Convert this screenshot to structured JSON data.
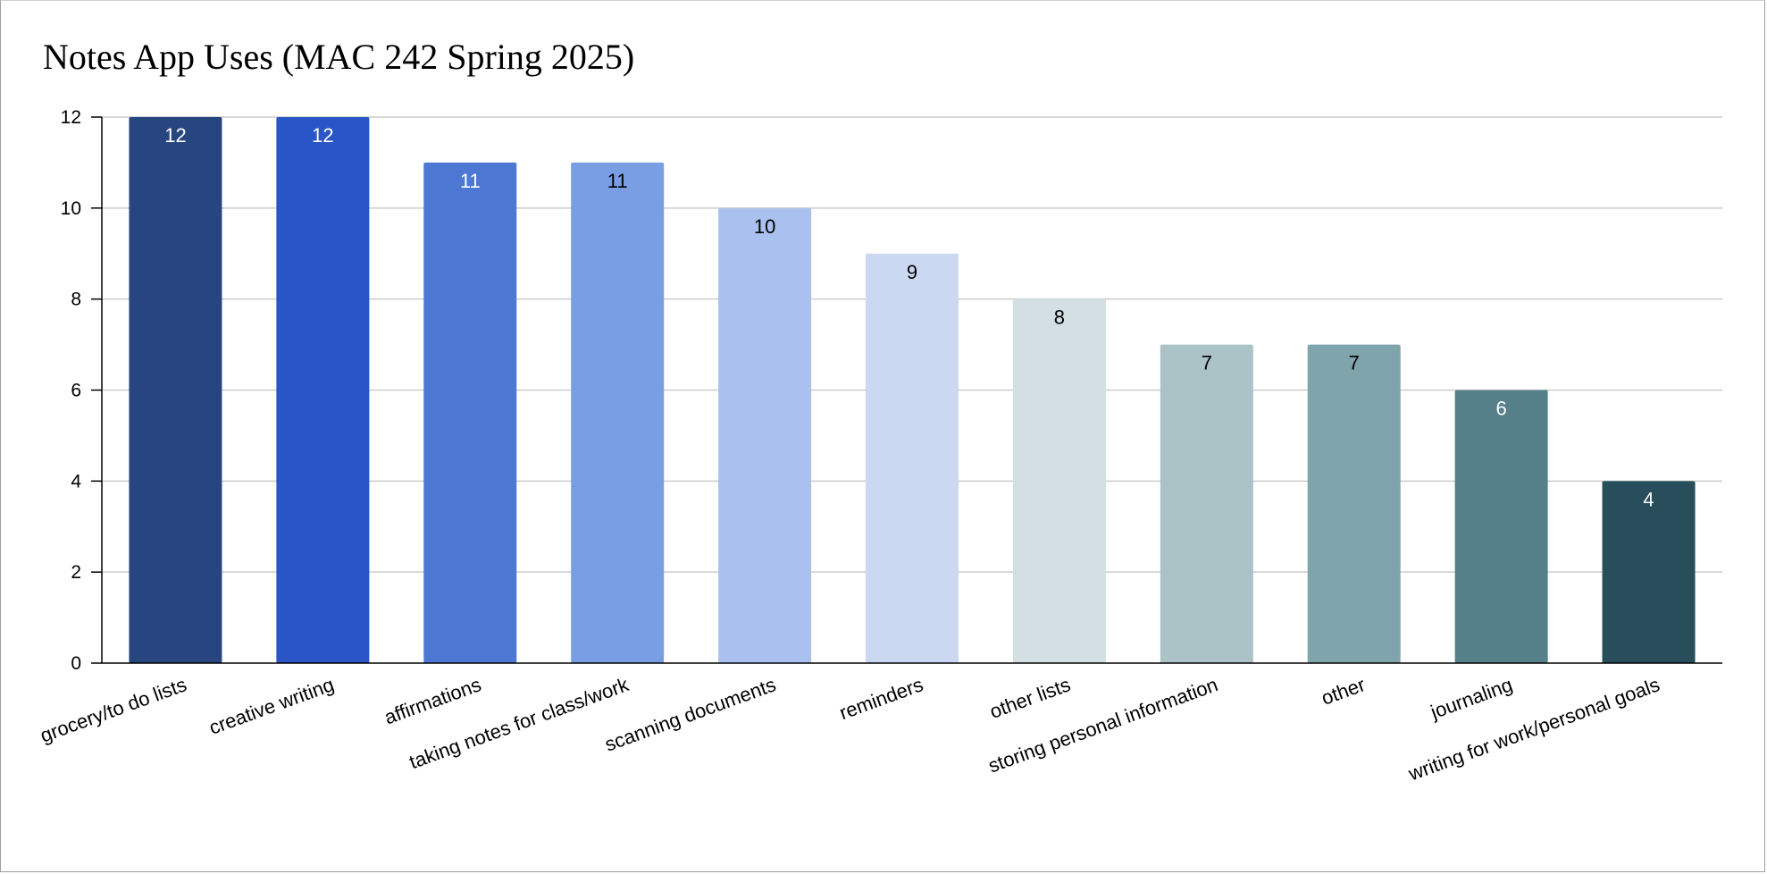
{
  "chart_data": {
    "type": "bar",
    "title": "Notes App Uses (MAC 242 Spring 2025)",
    "xlabel": "",
    "ylabel": "",
    "categories": [
      "grocery/to do lists",
      "creative writing",
      "affirmations",
      "taking notes for class/work",
      "scanning documents",
      "reminders",
      "other lists",
      "storing personal information",
      "other",
      "journaling",
      "writing for work/personal goals"
    ],
    "values": [
      12,
      12,
      11,
      11,
      10,
      9,
      8,
      7,
      7,
      6,
      4
    ],
    "data_labels": [
      "12",
      "12",
      "11",
      "11",
      "10",
      "9",
      "8",
      "7",
      "7",
      "6",
      "4"
    ],
    "colors": [
      "#27457f",
      "#2955c7",
      "#4c78d4",
      "#799ee4",
      "#aac0ee",
      "#cbd8f2",
      "#d3dfe3",
      "#abc2c6",
      "#80a4ab",
      "#557f89",
      "#274e5a"
    ],
    "label_colors": [
      "#ffffff",
      "#ffffff",
      "#ffffff",
      "#000000",
      "#000000",
      "#000000",
      "#000000",
      "#000000",
      "#000000",
      "#ffffff",
      "#ffffff"
    ],
    "ylim": [
      0,
      12
    ],
    "yticks": [
      "0",
      "2",
      "4",
      "6",
      "8",
      "10",
      "12"
    ],
    "grid": true,
    "legend": "none"
  }
}
